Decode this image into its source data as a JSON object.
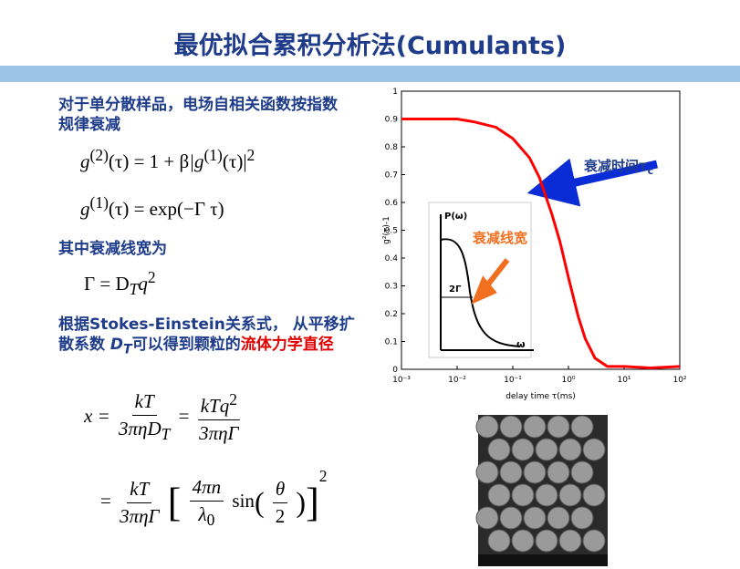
{
  "title": "最优拟合累积分析法(Cumulants)",
  "left": {
    "intro": "对于单分散样品，电场自相关函数按指数规律衰减",
    "eq1": [
      "g",
      "(2)",
      "(τ) = 1 + β",
      "|g",
      "(1)",
      "(τ)|",
      "2"
    ],
    "eq2": [
      "g",
      "(1)",
      "(τ) = exp(−Γ τ)"
    ],
    "gamma_intro": "其中衰减线宽为",
    "eq3": [
      "Γ = D",
      "T",
      "q",
      "2"
    ],
    "conclusion": [
      "根据Stokes-Einstein关系式， 从平移扩散系数 ",
      "D",
      "T",
      "可以得到颗粒的",
      "流体力学直径"
    ],
    "eq4": [
      "x =",
      "kT",
      "3πηD",
      "T",
      "=",
      "kTq",
      "2",
      "3πηΓ"
    ],
    "eq5": [
      "=",
      "kT",
      "3πηΓ",
      "[",
      "4πn",
      "λ",
      "0",
      "sin",
      "(",
      "θ",
      "2",
      ")",
      "]",
      "2"
    ]
  },
  "chart_data": {
    "type": "line",
    "x_label": "delay time τ(ms)",
    "y_label": "g²(τ)-1",
    "x": [
      0.001,
      0.002,
      0.005,
      0.01,
      0.02,
      0.05,
      0.1,
      0.2,
      0.3,
      0.5,
      0.7,
      1,
      1.5,
      2,
      3,
      5,
      10,
      30,
      100
    ],
    "series": [
      {
        "color": "#ff0000",
        "values": [
          0.9,
          0.9,
          0.9,
          0.9,
          0.89,
          0.87,
          0.83,
          0.76,
          0.69,
          0.56,
          0.46,
          0.33,
          0.19,
          0.11,
          0.04,
          0.01,
          0.01,
          0.005,
          0.01
        ]
      }
    ],
    "x_log": true,
    "xlim": [
      0.001,
      100
    ],
    "xticks": [
      {
        "value": 0.001,
        "label": "10⁻³"
      },
      {
        "value": 0.01,
        "label": "10⁻²"
      },
      {
        "value": 0.1,
        "label": "10⁻¹"
      },
      {
        "value": 1,
        "label": "10⁰"
      },
      {
        "value": 10,
        "label": "10¹"
      },
      {
        "value": 100,
        "label": "10²"
      }
    ],
    "ylim": [
      0,
      1
    ],
    "yticks": [
      0,
      0.1,
      0.2,
      0.3,
      0.4,
      0.5,
      0.6,
      0.7,
      0.8,
      0.9,
      1
    ],
    "annotations": {
      "decay_time": "衰减时间τ",
      "decay_time_sub": "c",
      "linewidth": "衰减线宽",
      "inset_y": "P(ω)",
      "inset_width": "2Γ",
      "inset_x": "ω"
    }
  }
}
